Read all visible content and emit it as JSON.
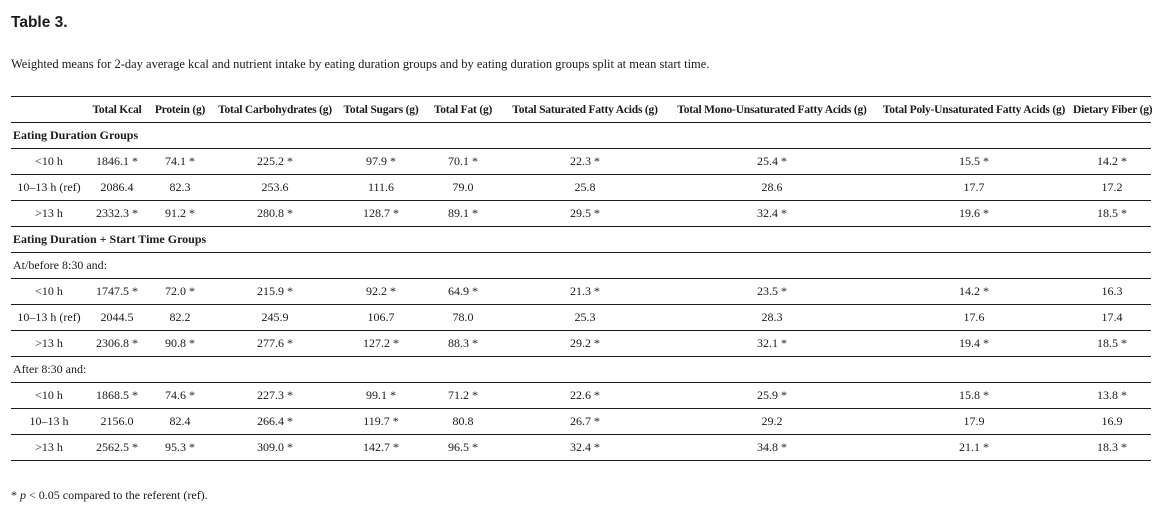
{
  "title": "Table 3.",
  "caption": "Weighted means for 2-day average kcal and nutrient intake by eating duration groups and by eating duration groups split at mean start time.",
  "table": {
    "columns": [
      "",
      "Total Kcal",
      "Protein (g)",
      "Total Carbohydrates (g)",
      "Total Sugars (g)",
      "Total Fat (g)",
      "Total Saturated Fatty Acids (g)",
      "Total Mono-Unsaturated Fatty Acids (g)",
      "Total Poly-Unsaturated Fatty Acids (g)",
      "Dietary Fiber (g)"
    ],
    "sections": [
      {
        "header": "Eating Duration Groups",
        "groups": [
          {
            "subheader": null,
            "rows": [
              [
                "<10 h",
                "1846.1 *",
                "74.1 *",
                "225.2 *",
                "97.9 *",
                "70.1 *",
                "22.3 *",
                "25.4 *",
                "15.5 *",
                "14.2 *"
              ],
              [
                "10–13 h (ref)",
                "2086.4",
                "82.3",
                "253.6",
                "111.6",
                "79.0",
                "25.8",
                "28.6",
                "17.7",
                "17.2"
              ],
              [
                ">13 h",
                "2332.3 *",
                "91.2 *",
                "280.8 *",
                "128.7 *",
                "89.1 *",
                "29.5 *",
                "32.4 *",
                "19.6 *",
                "18.5 *"
              ]
            ]
          }
        ]
      },
      {
        "header": "Eating Duration + Start Time Groups",
        "groups": [
          {
            "subheader": "At/before 8:30 and:",
            "rows": [
              [
                "<10 h",
                "1747.5 *",
                "72.0 *",
                "215.9 *",
                "92.2 *",
                "64.9 *",
                "21.3 *",
                "23.5 *",
                "14.2 *",
                "16.3"
              ],
              [
                "10–13 h (ref)",
                "2044.5",
                "82.2",
                "245.9",
                "106.7",
                "78.0",
                "25.3",
                "28.3",
                "17.6",
                "17.4"
              ],
              [
                ">13 h",
                "2306.8 *",
                "90.8 *",
                "277.6 *",
                "127.2 *",
                "88.3 *",
                "29.2 *",
                "32.1 *",
                "19.4 *",
                "18.5 *"
              ]
            ]
          },
          {
            "subheader": "After 8:30 and:",
            "rows": [
              [
                "<10 h",
                "1868.5 *",
                "74.6 *",
                "227.3 *",
                "99.1 *",
                "71.2 *",
                "22.6 *",
                "25.9 *",
                "15.8 *",
                "13.8 *"
              ],
              [
                "10–13 h",
                "2156.0",
                "82.4",
                "266.4 *",
                "119.7 *",
                "80.8",
                "26.7 *",
                "29.2",
                "17.9",
                "16.9"
              ],
              [
                ">13 h",
                "2562.5 *",
                "95.3 *",
                "309.0 *",
                "142.7 *",
                "96.5 *",
                "32.4 *",
                "34.8 *",
                "21.1 *",
                "18.3 *"
              ]
            ]
          }
        ]
      }
    ]
  },
  "footnote": {
    "marker": "* ",
    "p": "p",
    "text": " < 0.05 compared to the referent (ref)."
  }
}
